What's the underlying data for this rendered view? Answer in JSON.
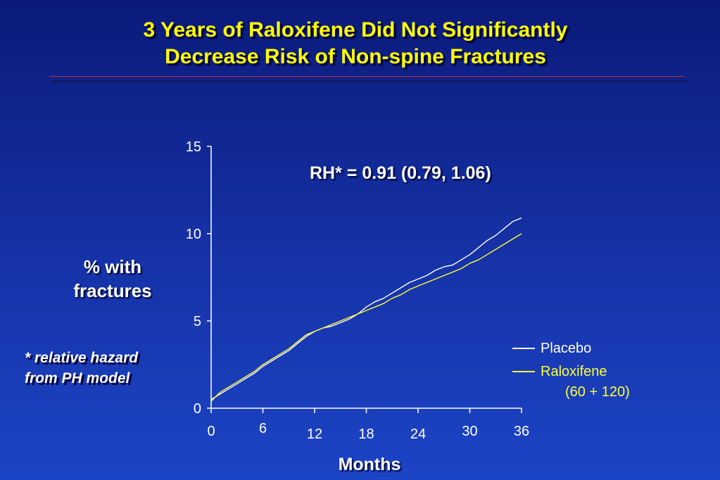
{
  "title": {
    "line1": "3 Years of Raloxifene Did Not Significantly",
    "line2": "Decrease Risk of Non-spine Fractures"
  },
  "y_axis_title": {
    "line1": "% with",
    "line2": "fractures"
  },
  "footnote": {
    "line1": "* relative hazard",
    "line2": "from PH model"
  },
  "colors": {
    "placebo": "#ffffff",
    "raloxifene": "#ffff33",
    "title": "#ffff00"
  },
  "chart_data": {
    "type": "line",
    "annotation": "RH* = 0.91 (0.79, 1.06)",
    "xlabel": "Months",
    "ylabel": "% with fractures",
    "xlim": [
      0,
      36
    ],
    "ylim": [
      0,
      15
    ],
    "x_ticks": [
      "0",
      "6",
      "12",
      "18",
      "24",
      "30",
      "36"
    ],
    "y_ticks": [
      "0",
      "5",
      "10",
      "15"
    ],
    "grid": false,
    "legend_position": "bottom-right",
    "series": [
      {
        "name": "Placebo",
        "color": "#ffffff",
        "x": [
          0,
          1,
          2,
          3,
          4,
          5,
          6,
          7,
          8,
          9,
          10,
          11,
          12,
          13,
          14,
          15,
          16,
          17,
          18,
          19,
          20,
          21,
          22,
          23,
          24,
          25,
          26,
          27,
          28,
          29,
          30,
          31,
          32,
          33,
          34,
          35,
          36
        ],
        "y": [
          0.5,
          0.8,
          1.1,
          1.4,
          1.7,
          2.0,
          2.4,
          2.7,
          3.0,
          3.3,
          3.7,
          4.1,
          4.4,
          4.6,
          4.7,
          4.9,
          5.1,
          5.4,
          5.8,
          6.1,
          6.3,
          6.6,
          6.9,
          7.2,
          7.4,
          7.6,
          7.9,
          8.1,
          8.2,
          8.5,
          8.8,
          9.2,
          9.6,
          9.9,
          10.3,
          10.7,
          10.9
        ]
      },
      {
        "name": "Raloxifene",
        "sublabel": "(60 + 120)",
        "color": "#ffff33",
        "x": [
          0,
          1,
          2,
          3,
          4,
          5,
          6,
          7,
          8,
          9,
          10,
          11,
          12,
          13,
          14,
          15,
          16,
          17,
          18,
          19,
          20,
          21,
          22,
          23,
          24,
          25,
          26,
          27,
          28,
          29,
          30,
          31,
          32,
          33,
          34,
          35,
          36
        ],
        "y": [
          0.4,
          0.9,
          1.2,
          1.5,
          1.8,
          2.1,
          2.5,
          2.8,
          3.1,
          3.4,
          3.8,
          4.2,
          4.4,
          4.6,
          4.8,
          5.0,
          5.2,
          5.4,
          5.6,
          5.8,
          6.0,
          6.3,
          6.5,
          6.8,
          7.0,
          7.2,
          7.4,
          7.6,
          7.8,
          8.0,
          8.3,
          8.5,
          8.8,
          9.1,
          9.4,
          9.7,
          10.0
        ]
      }
    ]
  }
}
